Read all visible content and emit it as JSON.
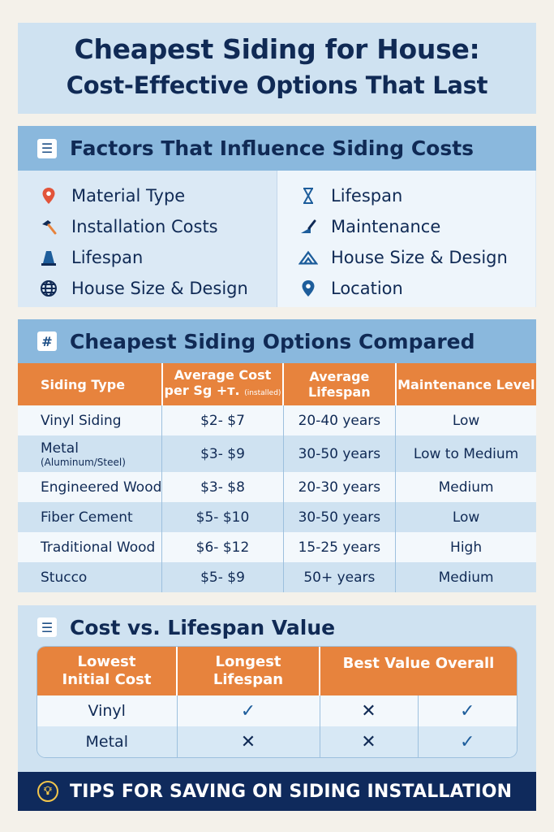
{
  "title": {
    "line1": "Cheapest Siding for House:",
    "line2": "Cost-Effective Options That Last"
  },
  "factors": {
    "heading": "Factors That Influence Siding Costs",
    "left": [
      {
        "label": "Material Type",
        "icon": "map-pin-icon"
      },
      {
        "label": "Installation Costs",
        "icon": "hammer-icon"
      },
      {
        "label": "Lifespan",
        "icon": "cone-icon"
      },
      {
        "label": "House Size & Design",
        "icon": "globe-icon"
      }
    ],
    "right": [
      {
        "label": "Lifespan",
        "icon": "hourglass-icon"
      },
      {
        "label": "Maintenance",
        "icon": "trowel-icon"
      },
      {
        "label": "House Size & Design",
        "icon": "house-outline-icon"
      },
      {
        "label": "Location",
        "icon": "location-pin-icon"
      }
    ]
  },
  "comparison": {
    "heading": "Cheapest Siding Options Compared",
    "headers": {
      "type": "Siding Type",
      "cost": "Average Cost",
      "cost_sub": "per Sg +т.",
      "cost_note": "(installed)",
      "life1": "Average",
      "life2": "Lifespan",
      "maint": "Maintenance Level"
    },
    "rows": [
      {
        "type": "Vinyl Siding",
        "type_sub": "",
        "cost": "$2- $7",
        "life": "20-40 years",
        "maint": "Low"
      },
      {
        "type": "Metal",
        "type_sub": "(Aluminum/Steel)",
        "cost": "$3- $9",
        "life": "30-50 years",
        "maint": "Low to Medium"
      },
      {
        "type": "Engineered Wood",
        "type_sub": "",
        "cost": "$3- $8",
        "life": "20-30 years",
        "maint": "Medium"
      },
      {
        "type": "Fiber Cement",
        "type_sub": "",
        "cost": "$5- $10",
        "life": "30-50 years",
        "maint": "Low"
      },
      {
        "type": "Traditional Wood",
        "type_sub": "",
        "cost": "$6- $12",
        "life": "15-25 years",
        "maint": "High"
      },
      {
        "type": "Stucco",
        "type_sub": "",
        "cost": "$5- $9",
        "life": "50+ years",
        "maint": "Medium"
      }
    ]
  },
  "value": {
    "heading": "Cost vs. Lifespan Value",
    "headers": {
      "col1a": "Lowest",
      "col1b": "Initial Cost",
      "col2a": "Longest",
      "col2b": "Lifespan",
      "col3": "Best Value Overall"
    },
    "rows": [
      {
        "name": "Vinyl",
        "marks": [
          "check",
          "cross",
          "check"
        ]
      },
      {
        "name": "Metal",
        "marks": [
          "cross",
          "cross",
          "check"
        ]
      }
    ]
  },
  "footer": {
    "text": "TIPS FOR SAVING ON SIDING INSTALLATION"
  },
  "colors": {
    "navy": "#102a55",
    "orange": "#e7833d",
    "light_blue": "#cfe2f1",
    "header_blue": "#8ab8dd",
    "footer_bg": "#0f2a5c"
  }
}
